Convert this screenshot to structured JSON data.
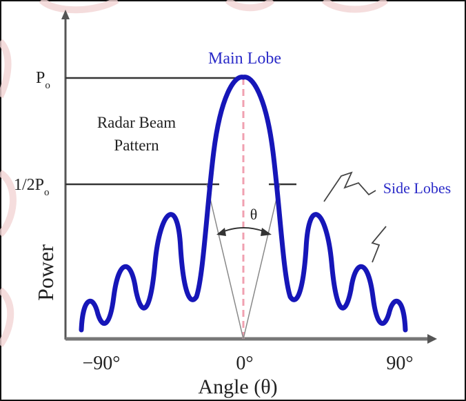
{
  "labels": {
    "main_lobe": "Main Lobe",
    "side_lobes": "Side Lobes",
    "pattern_line1": "Radar Beam",
    "pattern_line2": "Pattern",
    "beamwidth": "θ",
    "y_axis": "Power",
    "x_axis": "Angle (θ)",
    "p0_base": "P",
    "p0_sub": "o",
    "half_p0_base": "1/2P",
    "half_p0_sub": "o"
  },
  "x_ticks": [
    "−90°",
    "0°",
    "90°"
  ],
  "colors": {
    "curve": "#1616b8",
    "labels_blue": "#2a2ac8",
    "axis": "#555555",
    "center_line": "#f0a0b0",
    "watermark": "#f2d4d4",
    "frame": "#111111"
  },
  "watermark": "present"
}
